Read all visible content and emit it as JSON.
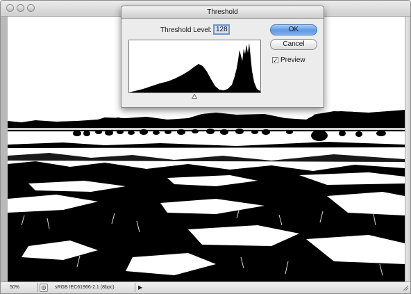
{
  "document": {
    "status_zoom": "50%",
    "status_profile": "sRGB IEC61966-2.1 (8bpc)"
  },
  "dialog": {
    "title": "Threshold",
    "threshold_label": "Threshold Level:",
    "threshold_value": "128",
    "ok_label": "OK",
    "cancel_label": "Cancel",
    "preview_label": "Preview",
    "preview_checked": true
  },
  "icons": {
    "window_controls": [
      "close-icon",
      "minimize-icon",
      "zoom-icon"
    ],
    "status_info": "info-icon",
    "status_menu": "triangle-right-icon",
    "slider": "triangle-up-icon"
  }
}
